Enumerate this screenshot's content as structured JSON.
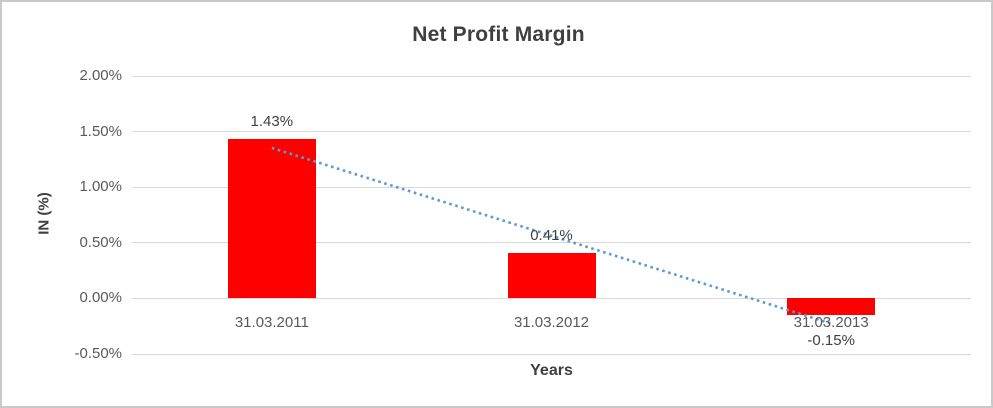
{
  "chart_data": {
    "type": "bar",
    "title": "Net Profit Margin",
    "xlabel": "Years",
    "ylabel": "IN (%)",
    "categories": [
      "31.03.2011",
      "31.03.2012",
      "31.03.2013"
    ],
    "values": [
      1.43,
      0.41,
      -0.15
    ],
    "data_labels": [
      "1.43%",
      "0.41%",
      "-0.15%"
    ],
    "ylim": [
      -0.5,
      2.0
    ],
    "yticks": [
      2.0,
      1.5,
      1.0,
      0.5,
      0.0,
      -0.5
    ],
    "ytick_labels": [
      "2.00%",
      "1.50%",
      "1.00%",
      "0.50%",
      "0.00%",
      "-0.50%"
    ],
    "grid": true,
    "legend": "none",
    "bar_color": "#ff0000",
    "trendline": {
      "type": "linear",
      "style": "dotted",
      "color": "#5b9bd5",
      "endpoints_pct": [
        1.353,
        -0.227
      ]
    },
    "colors": {
      "gridline": "#d9d9d9",
      "frame_border": "#c9c9c9",
      "title_text": "#3f3f3f",
      "tick_text": "#595959",
      "background": "#ffffff"
    }
  }
}
